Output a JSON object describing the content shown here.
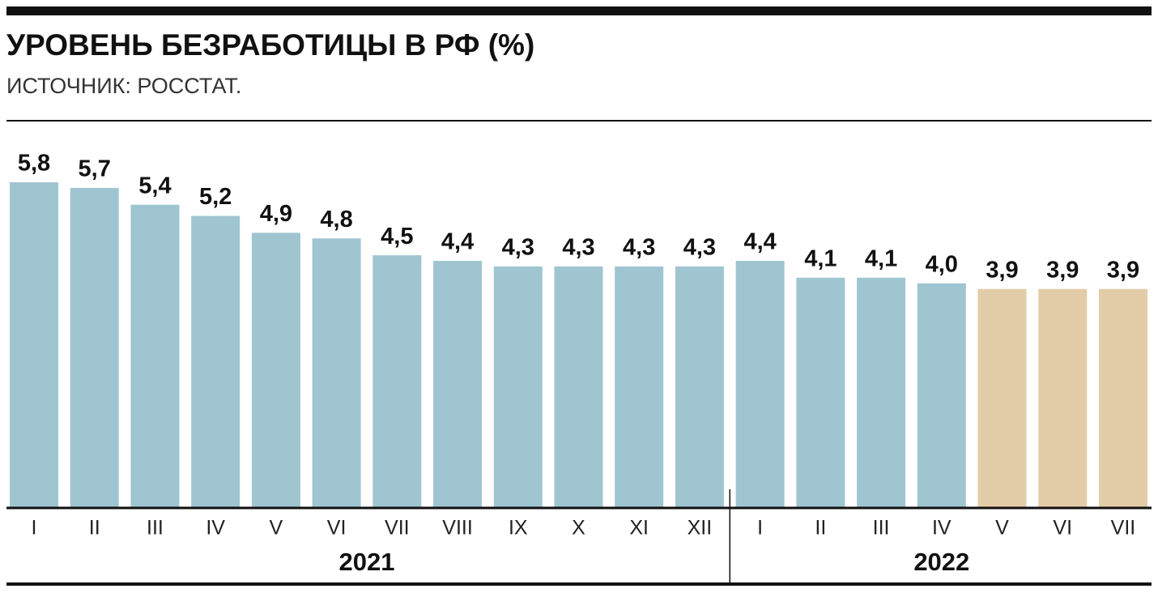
{
  "chart_data": {
    "type": "bar",
    "title": "УРОВЕНЬ БЕЗРАБОТИЦЫ В РФ (%)",
    "subtitle": "ИСТОЧНИК: РОССТАТ.",
    "groups": [
      {
        "label": "2021",
        "categories": [
          "I",
          "II",
          "III",
          "IV",
          "V",
          "VI",
          "VII",
          "VIII",
          "IX",
          "X",
          "XI",
          "XII"
        ],
        "values": [
          5.8,
          5.7,
          5.4,
          5.2,
          4.9,
          4.8,
          4.5,
          4.4,
          4.3,
          4.3,
          4.3,
          4.3
        ],
        "value_labels": [
          "5,8",
          "5,7",
          "5,4",
          "5,2",
          "4,9",
          "4,8",
          "4,5",
          "4,4",
          "4,3",
          "4,3",
          "4,3",
          "4,3"
        ],
        "colors": [
          "#9fc5d1",
          "#9fc5d1",
          "#9fc5d1",
          "#9fc5d1",
          "#9fc5d1",
          "#9fc5d1",
          "#9fc5d1",
          "#9fc5d1",
          "#9fc5d1",
          "#9fc5d1",
          "#9fc5d1",
          "#9fc5d1"
        ]
      },
      {
        "label": "2022",
        "categories": [
          "I",
          "II",
          "III",
          "IV",
          "V",
          "VI",
          "VII"
        ],
        "values": [
          4.4,
          4.1,
          4.1,
          4.0,
          3.9,
          3.9,
          3.9
        ],
        "value_labels": [
          "4,4",
          "4,1",
          "4,1",
          "4,0",
          "3,9",
          "3,9",
          "3,9"
        ],
        "colors": [
          "#9fc5d1",
          "#9fc5d1",
          "#9fc5d1",
          "#9fc5d1",
          "#e3cda8",
          "#e3cda8",
          "#e3cda8"
        ]
      }
    ]
  }
}
